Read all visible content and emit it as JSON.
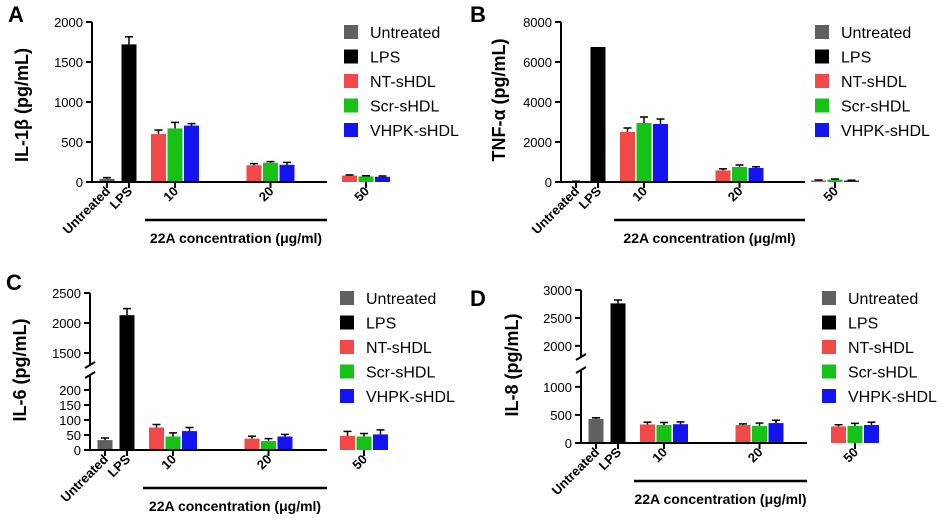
{
  "chart_data": [
    {
      "panel": "A",
      "type": "bar",
      "ylabel": "IL-1β (pg/mL)",
      "xlabel": "22A concentration (μg/ml)",
      "ylim": [
        0,
        2000
      ],
      "yticks": [
        "0",
        "500",
        "1000",
        "1500",
        "2000"
      ],
      "singles": [
        {
          "category": "Untreated",
          "label": "Untreated",
          "value": 40,
          "error": 15,
          "color": "#606060"
        },
        {
          "category": "LPS",
          "label": "LPS",
          "value": 1720,
          "error": 95,
          "color": "#000000"
        }
      ],
      "groups": [
        "10",
        "20",
        "50"
      ],
      "series": [
        {
          "name": "NT-sHDL",
          "color": "#f14848",
          "values": [
            600,
            210,
            80
          ],
          "errors": [
            50,
            20,
            8
          ]
        },
        {
          "name": "Scr-sHDL",
          "color": "#16c216",
          "values": [
            670,
            240,
            70
          ],
          "errors": [
            75,
            15,
            8
          ]
        },
        {
          "name": "VHPK-sHDL",
          "color": "#1414f0",
          "values": [
            705,
            215,
            65
          ],
          "errors": [
            25,
            30,
            10
          ]
        }
      ]
    },
    {
      "panel": "B",
      "type": "bar",
      "ylabel": "TNF-α (pg/mL)",
      "xlabel": "22A concentration (μg/ml)",
      "ylim": [
        0,
        8000
      ],
      "yticks": [
        "0",
        "2000",
        "4000",
        "6000",
        "8000"
      ],
      "singles": [
        {
          "category": "Untreated",
          "label": "Untreated",
          "value": 30,
          "error": 10,
          "color": "#606060"
        },
        {
          "category": "LPS",
          "label": "LPS",
          "value": 6750,
          "error": 0,
          "color": "#000000"
        }
      ],
      "groups": [
        "10",
        "20",
        "50"
      ],
      "series": [
        {
          "name": "NT-sHDL",
          "color": "#f14848",
          "values": [
            2500,
            580,
            80
          ],
          "errors": [
            200,
            80,
            20
          ]
        },
        {
          "name": "Scr-sHDL",
          "color": "#16c216",
          "values": [
            2950,
            750,
            120
          ],
          "errors": [
            300,
            100,
            30
          ]
        },
        {
          "name": "VHPK-sHDL",
          "color": "#1414f0",
          "values": [
            2900,
            700,
            70
          ],
          "errors": [
            250,
            60,
            20
          ]
        }
      ]
    },
    {
      "panel": "C",
      "type": "bar",
      "ylabel": "IL-6 (pg/mL)",
      "xlabel": "22A concentration (μg/ml)",
      "ybreak": {
        "lower": [
          0,
          250
        ],
        "upper": [
          1300,
          2500
        ]
      },
      "yticks_lower": [
        "0",
        "50",
        "100",
        "150",
        "200"
      ],
      "yticks_upper": [
        "1500",
        "2000",
        "2500"
      ],
      "singles": [
        {
          "category": "Untreated",
          "label": "Untreated",
          "value": 33,
          "error": 7,
          "color": "#606060"
        },
        {
          "category": "LPS",
          "label": "LPS",
          "value": 2130,
          "error": 110,
          "color": "#000000"
        }
      ],
      "groups": [
        "10",
        "20",
        "50"
      ],
      "series": [
        {
          "name": "NT-sHDL",
          "color": "#f14848",
          "values": [
            75,
            38,
            47
          ],
          "errors": [
            10,
            8,
            15
          ]
        },
        {
          "name": "Scr-sHDL",
          "color": "#16c216",
          "values": [
            45,
            30,
            45
          ],
          "errors": [
            12,
            8,
            10
          ]
        },
        {
          "name": "VHPK-sHDL",
          "color": "#1414f0",
          "values": [
            63,
            45,
            52
          ],
          "errors": [
            12,
            7,
            15
          ]
        }
      ]
    },
    {
      "panel": "D",
      "type": "bar",
      "ylabel": "IL-8 (pg/mL)",
      "xlabel": "22A concentration (μg/ml)",
      "ybreak": {
        "lower": [
          0,
          1300
        ],
        "upper": [
          1800,
          3000
        ]
      },
      "yticks_lower": [
        "0",
        "500",
        "1000"
      ],
      "yticks_upper": [
        "2000",
        "2500",
        "3000"
      ],
      "singles": [
        {
          "category": "Untreated",
          "label": "Untreated",
          "value": 430,
          "error": 20,
          "color": "#606060"
        },
        {
          "category": "LPS",
          "label": "LPS",
          "value": 2760,
          "error": 60,
          "color": "#000000"
        }
      ],
      "groups": [
        "10",
        "20",
        "50"
      ],
      "series": [
        {
          "name": "NT-sHDL",
          "color": "#f14848",
          "values": [
            330,
            320,
            295
          ],
          "errors": [
            40,
            20,
            30
          ]
        },
        {
          "name": "Scr-sHDL",
          "color": "#16c216",
          "values": [
            320,
            305,
            305
          ],
          "errors": [
            45,
            50,
            45
          ]
        },
        {
          "name": "VHPK-sHDL",
          "color": "#1414f0",
          "values": [
            335,
            355,
            320
          ],
          "errors": [
            40,
            50,
            50
          ]
        }
      ]
    }
  ]
}
